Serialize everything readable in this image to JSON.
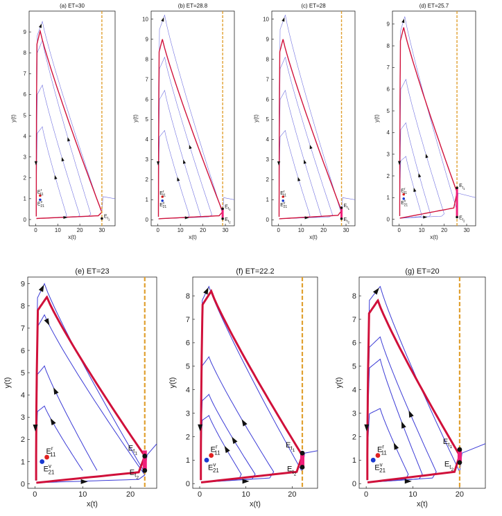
{
  "colors": {
    "trajectory": "#3a3ad6",
    "trajectory_thin": "#7070e0",
    "limit_cycle": "#d0103a",
    "threshold": "#e0a030",
    "sliding": "#f0207a",
    "point_real": "#e02020",
    "point_virtual": "#1a3ad0",
    "point_black": "#111111"
  },
  "chart_data": [
    {
      "type": "line",
      "panel": "a",
      "title": "(a) ET=30",
      "xlabel": "x(t)",
      "ylabel": "y(t)",
      "xlim": [
        -3,
        36
      ],
      "ylim": [
        -0.3,
        10
      ],
      "xticks": [
        0,
        10,
        20,
        30
      ],
      "yticks": [
        0,
        1,
        2,
        3,
        4,
        5,
        6,
        7,
        8,
        9
      ],
      "threshold_ET": 30,
      "cycle_peak": [
        2,
        9.05
      ],
      "cycle_right": [
        30,
        0.35
      ],
      "orbits": [
        {
          "peak": [
            3,
            9.5
          ],
          "right": [
            30,
            0.3
          ],
          "dir": "in",
          "exit": [
            36,
            1.0
          ]
        },
        {
          "peak": [
            3,
            8.6
          ],
          "right": [
            25,
            0.25
          ],
          "dir": "out"
        },
        {
          "peak": [
            3,
            6.45
          ],
          "right": [
            20,
            0.2
          ],
          "dir": "out"
        },
        {
          "peak": [
            3,
            4.45
          ],
          "right": [
            14,
            0.2
          ],
          "dir": "out"
        }
      ],
      "sliding_segment": [],
      "points": [
        {
          "id": "E^r_11",
          "x": 2,
          "y": 1.15,
          "kind": "real"
        },
        {
          "id": "E^v_21",
          "x": 2,
          "y": 0.95,
          "kind": "virtual"
        },
        {
          "id": "E_t1",
          "x": 30,
          "y": 0.05,
          "kind": "black"
        }
      ],
      "labels": {
        "er": "E",
        "er_sup": "r",
        "er_sub": "11",
        "ev": "E",
        "ev_sup": "v",
        "ev_sub": "21",
        "et1": "E",
        "et1_sub": "t",
        "et1_idx": "1",
        "et2": "",
        "et2_sub": "",
        "et2_idx": ""
      }
    },
    {
      "type": "line",
      "panel": "b",
      "title": "(b) ET=28.8",
      "xlabel": "x(t)",
      "ylabel": "y(t)",
      "xlim": [
        -3,
        34
      ],
      "ylim": [
        -0.3,
        10.4
      ],
      "xticks": [
        0,
        10,
        20,
        30
      ],
      "yticks": [
        0,
        1,
        2,
        3,
        4,
        5,
        6,
        7,
        8,
        9,
        10
      ],
      "threshold_ET": 28.8,
      "cycle_peak": [
        2,
        9.0
      ],
      "cycle_right": [
        28.8,
        0.4
      ],
      "orbits": [
        {
          "peak": [
            3,
            10.2
          ],
          "right": [
            28.8,
            0.3
          ],
          "dir": "in",
          "exit": [
            34,
            1.0
          ]
        },
        {
          "peak": [
            3,
            8.1
          ],
          "right": [
            24,
            0.25
          ],
          "dir": "out"
        },
        {
          "peak": [
            3,
            6.45
          ],
          "right": [
            19,
            0.2
          ],
          "dir": "out"
        },
        {
          "peak": [
            3,
            4.45
          ],
          "right": [
            14,
            0.2
          ],
          "dir": "out"
        }
      ],
      "sliding_segment": [
        0.05,
        0.55
      ],
      "points": [
        {
          "id": "E^r_11",
          "x": 2,
          "y": 1.15,
          "kind": "real"
        },
        {
          "id": "E^v_21",
          "x": 2,
          "y": 0.95,
          "kind": "virtual"
        },
        {
          "id": "E_t1",
          "x": 28.8,
          "y": 0.55,
          "kind": "black"
        },
        {
          "id": "E_t2",
          "x": 28.8,
          "y": 0.05,
          "kind": "black"
        }
      ],
      "labels": {
        "er": "E",
        "er_sup": "r",
        "er_sub": "11",
        "ev": "E",
        "ev_sup": "v",
        "ev_sub": "21",
        "et1": "E",
        "et1_sub": "t",
        "et1_idx": "1",
        "et2": "E",
        "et2_sub": "t",
        "et2_idx": "2"
      }
    },
    {
      "type": "line",
      "panel": "c",
      "title": "(c) ET=28",
      "xlabel": "x(t)",
      "ylabel": "y(t)",
      "xlim": [
        -3,
        34
      ],
      "ylim": [
        -0.3,
        10.4
      ],
      "xticks": [
        0,
        10,
        20,
        30
      ],
      "yticks": [
        0,
        1,
        2,
        3,
        4,
        5,
        6,
        7,
        8,
        9,
        10
      ],
      "threshold_ET": 28,
      "cycle_peak": [
        2,
        9.0
      ],
      "cycle_right": [
        28,
        0.45
      ],
      "orbits": [
        {
          "peak": [
            3,
            10.2
          ],
          "right": [
            28,
            0.3
          ],
          "dir": "in",
          "exit": [
            34,
            1.0
          ]
        },
        {
          "peak": [
            3,
            8.1
          ],
          "right": [
            24,
            0.25
          ],
          "dir": "out"
        },
        {
          "peak": [
            3,
            6.45
          ],
          "right": [
            19,
            0.2
          ],
          "dir": "out"
        },
        {
          "peak": [
            3,
            4.45
          ],
          "right": [
            14,
            0.2
          ],
          "dir": "out"
        }
      ],
      "sliding_segment": [
        0.05,
        0.6
      ],
      "points": [
        {
          "id": "E^r_11",
          "x": 2,
          "y": 1.15,
          "kind": "real"
        },
        {
          "id": "E^v_21",
          "x": 2,
          "y": 0.95,
          "kind": "virtual"
        },
        {
          "id": "E_t1",
          "x": 28,
          "y": 0.6,
          "kind": "black"
        },
        {
          "id": "E_t2",
          "x": 28,
          "y": 0.05,
          "kind": "black"
        }
      ],
      "labels": {
        "er": "E",
        "er_sup": "r",
        "er_sub": "11",
        "ev": "E",
        "ev_sup": "v",
        "ev_sub": "21",
        "et1": "E",
        "et1_sub": "t",
        "et1_idx": "1",
        "et2": "E",
        "et2_sub": "t",
        "et2_idx": "2"
      }
    },
    {
      "type": "line",
      "panel": "d",
      "title": "(d) ET=25.7",
      "xlabel": "x(t)",
      "ylabel": "y(t)",
      "xlim": [
        -3,
        34
      ],
      "ylim": [
        -0.3,
        9.6
      ],
      "xticks": [
        0,
        10,
        20,
        30
      ],
      "yticks": [
        0,
        1,
        2,
        3,
        4,
        5,
        6,
        7,
        8,
        9
      ],
      "threshold_ET": 25.7,
      "cycle_peak": [
        2,
        8.85
      ],
      "cycle_right": [
        25.7,
        1.25
      ],
      "orbits": [
        {
          "peak": [
            2.5,
            9.35
          ],
          "right": [
            25.7,
            0.4
          ],
          "dir": "in",
          "exit": [
            34,
            1.0
          ]
        },
        {
          "peak": [
            3,
            6.45
          ],
          "right": [
            20,
            0.25
          ],
          "dir": "out"
        },
        {
          "peak": [
            3,
            4.45
          ],
          "right": [
            14,
            0.2
          ],
          "dir": "out"
        },
        {
          "peak": [
            3,
            2.9
          ],
          "right": [
            10,
            0.2
          ],
          "dir": "out"
        }
      ],
      "sliding_segment": [
        0.1,
        1.45
      ],
      "points": [
        {
          "id": "E^r_11",
          "x": 2,
          "y": 1.15,
          "kind": "real"
        },
        {
          "id": "E^v_21",
          "x": 2,
          "y": 0.95,
          "kind": "virtual"
        },
        {
          "id": "E_t1",
          "x": 25.7,
          "y": 1.45,
          "kind": "black"
        },
        {
          "id": "E_t2",
          "x": 25.7,
          "y": 0.1,
          "kind": "black"
        }
      ],
      "labels": {
        "er": "E",
        "er_sup": "r",
        "er_sub": "11",
        "ev": "E",
        "ev_sup": "v",
        "ev_sub": "21",
        "et1": "E",
        "et1_sub": "t",
        "et1_idx": "1",
        "et2": "E",
        "et2_sub": "t",
        "et2_idx": "2"
      }
    },
    {
      "type": "line",
      "panel": "e",
      "title": "(e) ET=23",
      "xlabel": "x(t)",
      "ylabel": "y(t)",
      "xlim": [
        -1.5,
        25.5
      ],
      "ylim": [
        -0.2,
        9.3
      ],
      "xticks": [
        0,
        10,
        20
      ],
      "yticks": [
        0,
        1,
        2,
        3,
        4,
        5,
        6,
        7,
        8,
        9
      ],
      "threshold_ET": 23,
      "cycle_peak": [
        2.5,
        8.4
      ],
      "cycle_right": [
        23,
        1.25
      ],
      "orbits": [
        {
          "peak": [
            2,
            9.0
          ],
          "right": [
            23,
            0.5
          ],
          "dir": "in",
          "exit": [
            25.5,
            1.8
          ]
        },
        {
          "peak": [
            2,
            7.6
          ],
          "right": [
            23,
            0.4
          ],
          "dir": "in"
        },
        {
          "peak": [
            2,
            5.3
          ],
          "right": [
            13,
            0.6
          ],
          "dir": "out",
          "open": true
        },
        {
          "peak": [
            2,
            3.5
          ],
          "right": [
            10,
            0.6
          ],
          "dir": "out",
          "open": true
        }
      ],
      "sliding_segment": [
        0.6,
        1.5
      ],
      "points": [
        {
          "id": "E^r_11",
          "x": 2.5,
          "y": 1.2,
          "kind": "real"
        },
        {
          "id": "E^v_21",
          "x": 1.5,
          "y": 1.0,
          "kind": "virtual"
        },
        {
          "id": "E_t1",
          "x": 23,
          "y": 1.25,
          "kind": "black"
        },
        {
          "id": "E_t2",
          "x": 23,
          "y": 0.6,
          "kind": "black"
        }
      ],
      "labels": {
        "er": "E",
        "er_sup": "r",
        "er_sub": "11",
        "ev": "E",
        "ev_sup": "v",
        "ev_sub": "21",
        "et1": "E",
        "et1_sub": "t",
        "et1_idx": "1",
        "et2": "E",
        "et2_sub": "t",
        "et2_idx": "2"
      }
    },
    {
      "type": "line",
      "panel": "f",
      "title": "(f) ET=22.2",
      "xlabel": "x(t)",
      "ylabel": "y(t)",
      "xlim": [
        -1.5,
        25.5
      ],
      "ylim": [
        -0.2,
        8.8
      ],
      "xticks": [
        0,
        10,
        20
      ],
      "yticks": [
        0,
        1,
        2,
        3,
        4,
        5,
        6,
        7,
        8
      ],
      "threshold_ET": 22.2,
      "cycle_peak": [
        2.5,
        8.2
      ],
      "cycle_right": [
        22.2,
        1.2
      ],
      "orbits": [
        {
          "peak": [
            2,
            8.4
          ],
          "right": [
            22.2,
            0.5
          ],
          "dir": "in",
          "exit": [
            25.5,
            1.4
          ]
        },
        {
          "peak": [
            2,
            5.4
          ],
          "right": [
            16,
            0.5
          ],
          "dir": "out"
        },
        {
          "peak": [
            2,
            3.8
          ],
          "right": [
            12,
            0.4
          ],
          "dir": "out"
        },
        {
          "peak": [
            2,
            2.9
          ],
          "right": [
            9,
            0.4
          ],
          "dir": "out"
        }
      ],
      "sliding_segment": [
        0.7,
        1.3
      ],
      "points": [
        {
          "id": "E^r_11",
          "x": 2.5,
          "y": 1.2,
          "kind": "real"
        },
        {
          "id": "E^v_21",
          "x": 1.5,
          "y": 1.0,
          "kind": "virtual"
        },
        {
          "id": "E_t1",
          "x": 22.2,
          "y": 1.3,
          "kind": "black"
        },
        {
          "id": "E_t2",
          "x": 22.2,
          "y": 0.7,
          "kind": "black"
        }
      ],
      "labels": {
        "er": "E",
        "er_sup": "r",
        "er_sub": "11",
        "ev": "E",
        "ev_sup": "v",
        "ev_sub": "21",
        "et1": "E",
        "et1_sub": "t",
        "et1_idx": "1",
        "et2": "E",
        "et2_sub": "t",
        "et2_idx": "2"
      }
    },
    {
      "type": "line",
      "panel": "g",
      "title": "(g) ET=20",
      "xlabel": "x(t)",
      "ylabel": "y(t)",
      "xlim": [
        -1.5,
        25.5
      ],
      "ylim": [
        -0.2,
        8.8
      ],
      "xticks": [
        0,
        10,
        20
      ],
      "yticks": [
        0,
        1,
        2,
        3,
        4,
        5,
        6,
        7,
        8
      ],
      "threshold_ET": 20,
      "cycle_peak": [
        2.5,
        7.8
      ],
      "cycle_right": [
        20,
        1.2
      ],
      "orbits": [
        {
          "peak": [
            3,
            8.4
          ],
          "right": [
            20,
            0.5
          ],
          "dir": "in",
          "exit": [
            25.5,
            1.7
          ]
        },
        {
          "peak": [
            3,
            6.25
          ],
          "right": [
            15,
            0.5
          ],
          "dir": "out"
        },
        {
          "peak": [
            3,
            5.3
          ],
          "right": [
            12,
            0.4
          ],
          "dir": "out"
        },
        {
          "peak": [
            3,
            3.2
          ],
          "right": [
            9,
            0.4
          ],
          "dir": "out"
        }
      ],
      "sliding_segment": [
        0.9,
        1.45
      ],
      "points": [
        {
          "id": "E^r_11",
          "x": 2.5,
          "y": 1.2,
          "kind": "real"
        },
        {
          "id": "E^v_21",
          "x": 1.5,
          "y": 1.0,
          "kind": "virtual"
        },
        {
          "id": "E_t1",
          "x": 20,
          "y": 1.45,
          "kind": "black"
        },
        {
          "id": "E_t2",
          "x": 20,
          "y": 0.9,
          "kind": "black"
        }
      ],
      "labels": {
        "er": "E",
        "er_sup": "r",
        "er_sub": "11",
        "ev": "E",
        "ev_sup": "v",
        "ev_sub": "21",
        "et1": "E",
        "et1_sub": "t",
        "et1_idx": "1",
        "et2": "E",
        "et2_sub": "t",
        "et2_idx": "2"
      }
    }
  ]
}
